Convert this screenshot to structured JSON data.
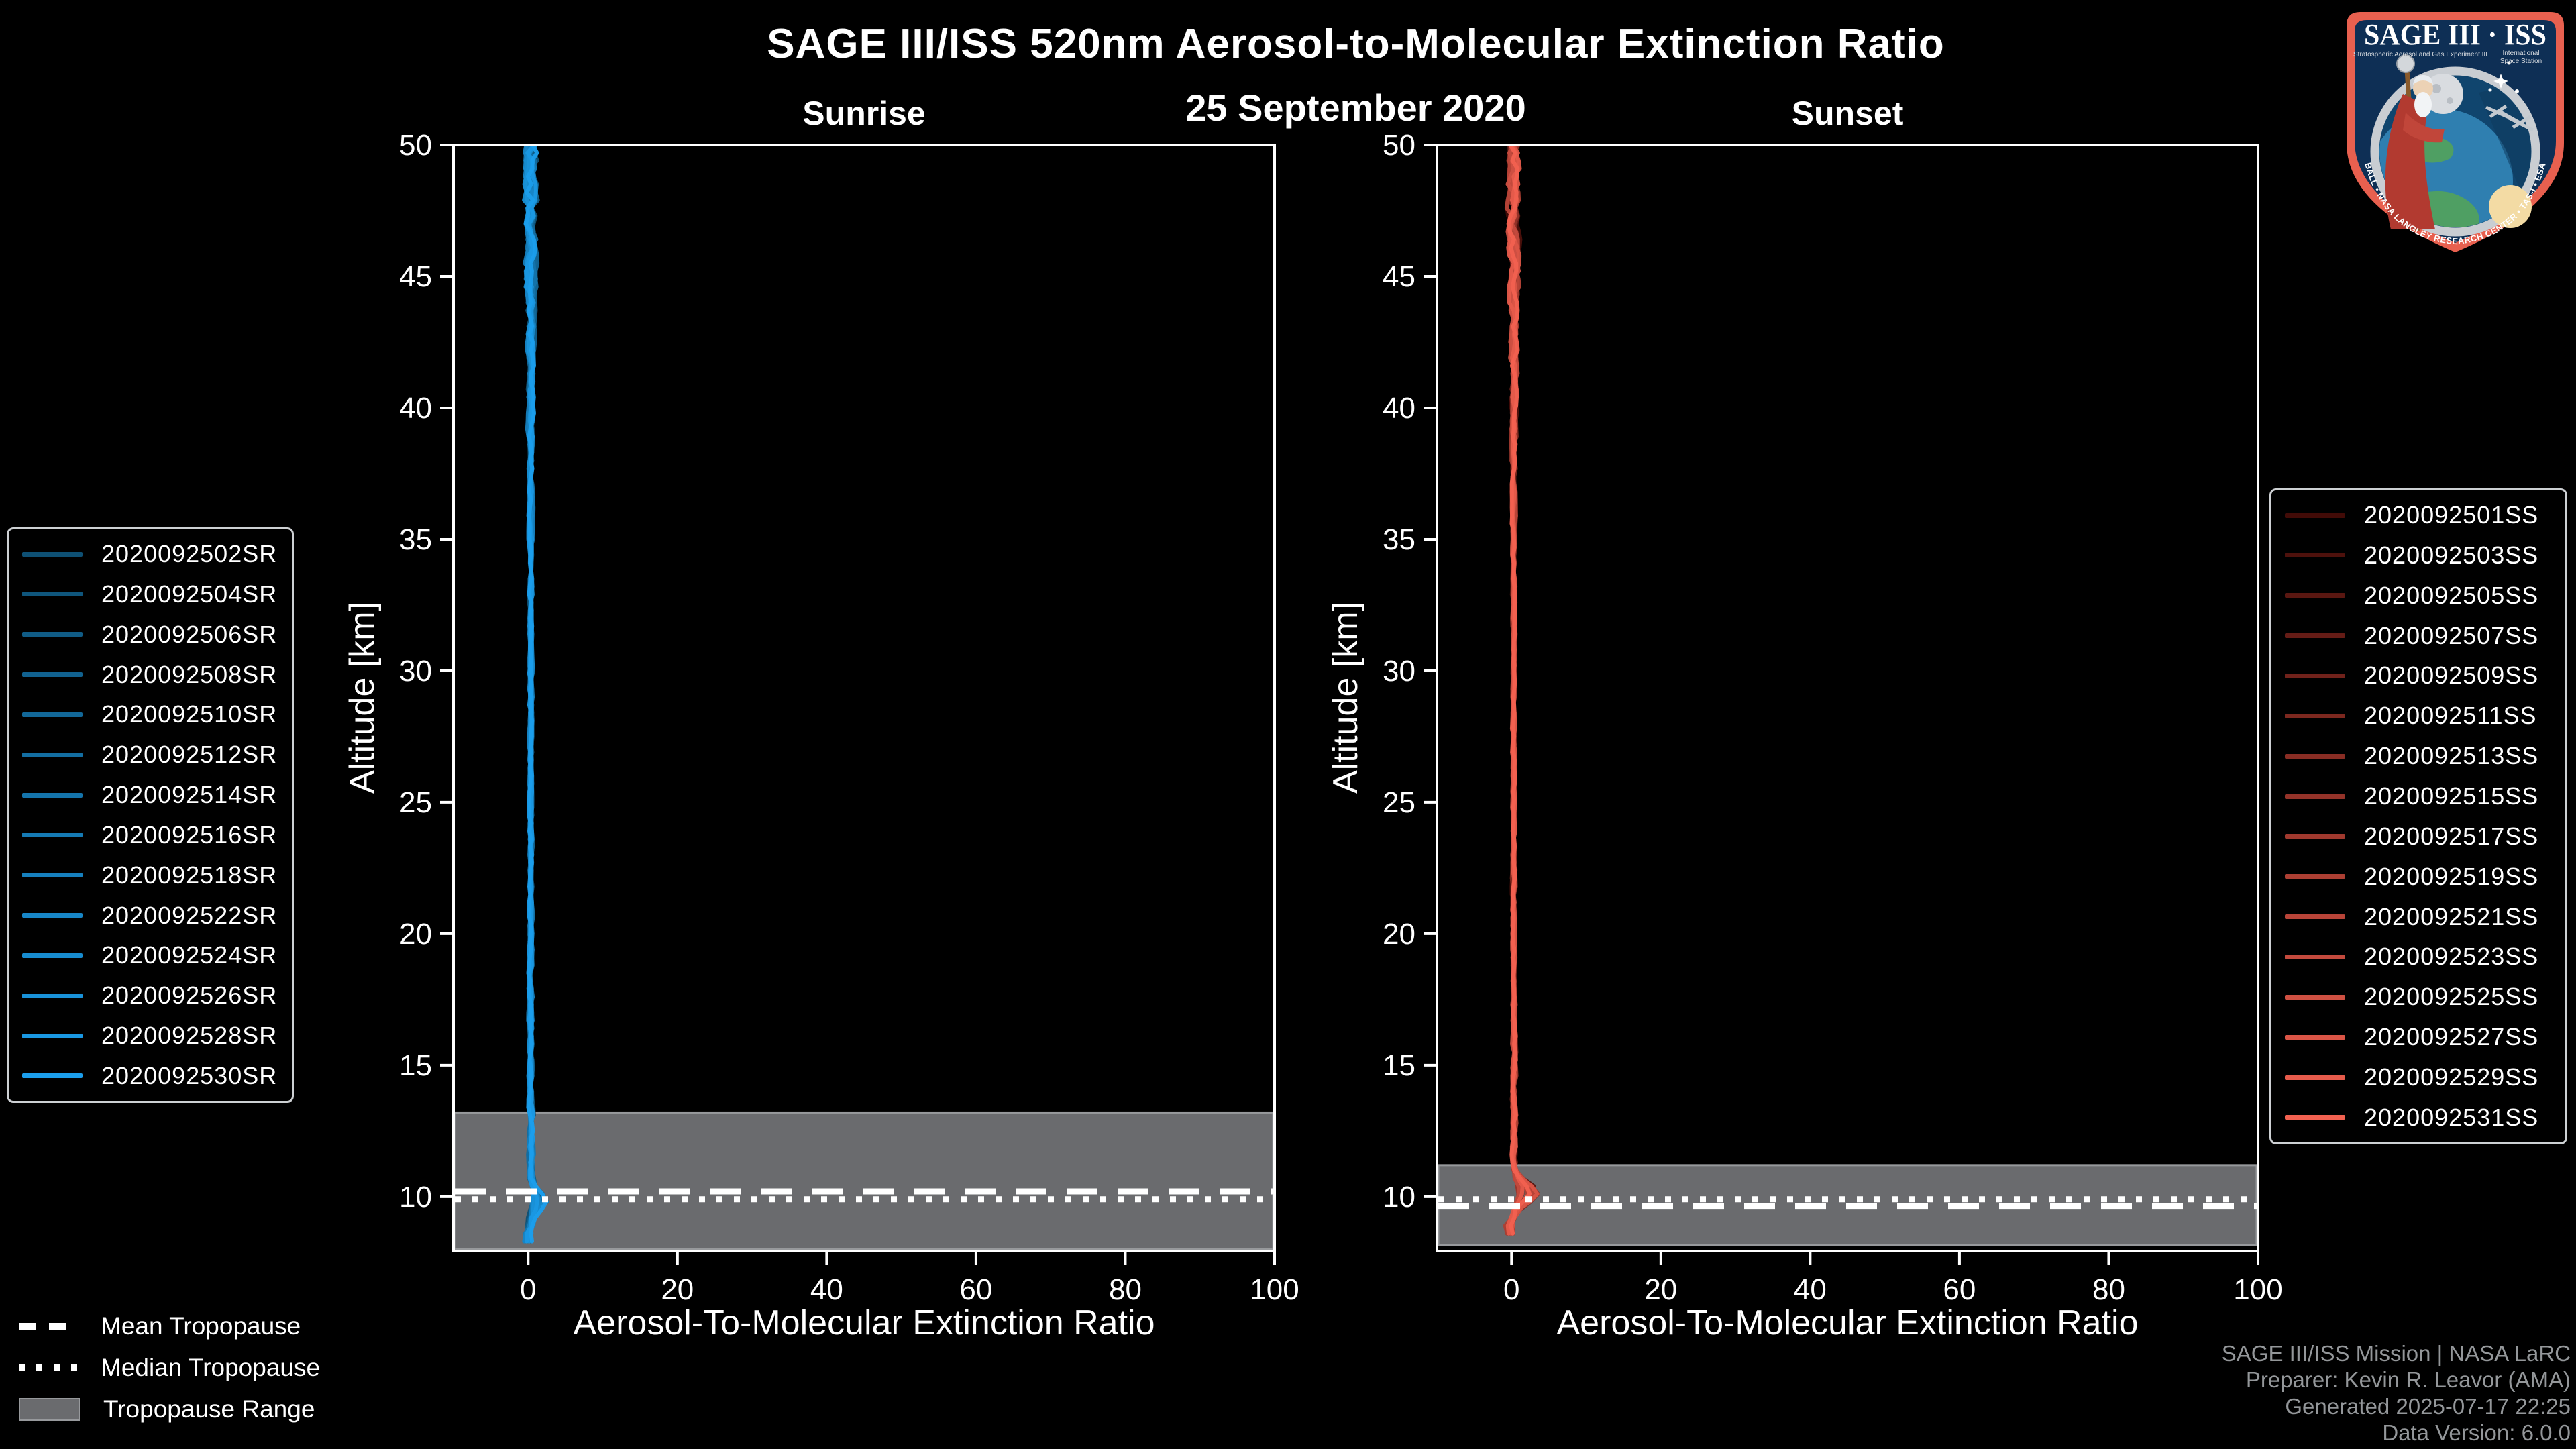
{
  "header": {
    "title": "SAGE III/ISS 520nm Aerosol-to-Molecular Extinction Ratio",
    "date": "25 September 2020"
  },
  "footer": {
    "lines": [
      "SAGE III/ISS Mission | NASA LaRC",
      "Preparer: Kevin R. Leavor (AMA)",
      "Generated 2025-07-17 22:25",
      "Data Version: 6.0.0"
    ]
  },
  "tropopause_legend": {
    "mean": "Mean Tropopause",
    "median": "Median Tropopause",
    "range": "Tropopause Range"
  },
  "logo": {
    "title": "SAGE III · ISS",
    "subtitle_left": "Stratospheric Aerosol and Gas Experiment III",
    "subtitle_right_line1": "International",
    "subtitle_right_line2": "Space Station",
    "ring_text": "BALL • NASA LANGLEY RESEARCH CENTER • TAS-I • ESA"
  },
  "colors": {
    "background": "#000000",
    "text": "#ffffff",
    "footer_text": "#94979a",
    "band_fill": "#6a6b6e",
    "band_edge": "#97999c",
    "legend_border": "#cdd0d3",
    "sunrise_line": "#1887cd",
    "sunset_line": "#e4564a"
  },
  "chart_data": {
    "type": "line",
    "title": "SAGE III/ISS 520nm Aerosol-to-Molecular Extinction Ratio",
    "subtitle": "25 September 2020",
    "x": {
      "label": "Aerosol-To-Molecular Extinction Ratio",
      "lim": [
        -10,
        100
      ],
      "ticks": [
        0,
        20,
        40,
        60,
        80,
        100
      ]
    },
    "y": {
      "label": "Altitude [km]",
      "lim": [
        7.9,
        50
      ],
      "ticks": [
        10,
        15,
        20,
        25,
        30,
        35,
        40,
        45,
        50
      ]
    },
    "grid": false,
    "panels": [
      {
        "name": "Sunrise",
        "series": [
          {
            "id": "2020092502SR",
            "color": "#0e5074"
          },
          {
            "id": "2020092504SR",
            "color": "#0f567d"
          },
          {
            "id": "2020092506SR",
            "color": "#105c86"
          },
          {
            "id": "2020092508SR",
            "color": "#116290"
          },
          {
            "id": "2020092510SR",
            "color": "#126899"
          },
          {
            "id": "2020092512SR",
            "color": "#136ea2"
          },
          {
            "id": "2020092514SR",
            "color": "#1474ab"
          },
          {
            "id": "2020092516SR",
            "color": "#157ab4"
          },
          {
            "id": "2020092518SR",
            "color": "#1680be"
          },
          {
            "id": "2020092522SR",
            "color": "#1786c7"
          },
          {
            "id": "2020092524SR",
            "color": "#178cd0"
          },
          {
            "id": "2020092526SR",
            "color": "#1992d9"
          },
          {
            "id": "2020092528SR",
            "color": "#1a98e3"
          },
          {
            "id": "2020092530SR",
            "color": "#1b9eec"
          }
        ],
        "tropopause": {
          "mean_km": 10.2,
          "median_km": 9.9,
          "range_top_km": 13.2,
          "range_bottom_km": 8.0
        },
        "profile_model": {
          "center_ratio": 0.35,
          "noise_by_alt": [
            [
              50,
              1.25
            ],
            [
              46,
              0.95
            ],
            [
              42,
              0.6
            ],
            [
              38,
              0.4
            ],
            [
              34,
              0.28
            ],
            [
              24,
              0.28
            ],
            [
              16,
              0.38
            ],
            [
              12,
              0.45
            ],
            [
              8,
              0.5
            ]
          ],
          "bulge": {
            "alt_km": 9.85,
            "sigma_km": 0.5,
            "max_ratio": 2.0
          },
          "dip": {
            "alt_km": 8.4,
            "sigma_km": 0.35,
            "max_ratio": -0.9
          },
          "min_alt_km": 7.95
        }
      },
      {
        "name": "Sunset",
        "series": [
          {
            "id": "2020092501SS",
            "color": "#420b07"
          },
          {
            "id": "2020092503SS",
            "color": "#4e110c"
          },
          {
            "id": "2020092505SS",
            "color": "#5a1711"
          },
          {
            "id": "2020092507SS",
            "color": "#651c16"
          },
          {
            "id": "2020092509SS",
            "color": "#71221b"
          },
          {
            "id": "2020092511SS",
            "color": "#7d281f"
          },
          {
            "id": "2020092513SS",
            "color": "#892d24"
          },
          {
            "id": "2020092515SS",
            "color": "#943329"
          },
          {
            "id": "2020092517SS",
            "color": "#a0392e"
          },
          {
            "id": "2020092519SS",
            "color": "#ac3f33"
          },
          {
            "id": "2020092521SS",
            "color": "#b84438"
          },
          {
            "id": "2020092523SS",
            "color": "#c34a3d"
          },
          {
            "id": "2020092525SS",
            "color": "#cf5042"
          },
          {
            "id": "2020092527SS",
            "color": "#db5546"
          },
          {
            "id": "2020092529SS",
            "color": "#e65b4b"
          },
          {
            "id": "2020092531SS",
            "color": "#f26150"
          }
        ],
        "tropopause": {
          "mean_km": 9.65,
          "median_km": 9.9,
          "range_top_km": 11.2,
          "range_bottom_km": 8.15
        },
        "profile_model": {
          "center_ratio": 0.3,
          "noise_by_alt": [
            [
              50,
              1.15
            ],
            [
              46,
              0.9
            ],
            [
              42,
              0.55
            ],
            [
              38,
              0.38
            ],
            [
              34,
              0.26
            ],
            [
              24,
              0.26
            ],
            [
              16,
              0.34
            ],
            [
              12,
              0.4
            ],
            [
              8,
              0.45
            ]
          ],
          "bulge": {
            "alt_km": 10.15,
            "sigma_km": 0.55,
            "max_ratio": 3.3
          },
          "dip": {
            "alt_km": 8.8,
            "sigma_km": 0.4,
            "max_ratio": -1.1
          },
          "min_alt_km": 7.95
        }
      }
    ]
  }
}
